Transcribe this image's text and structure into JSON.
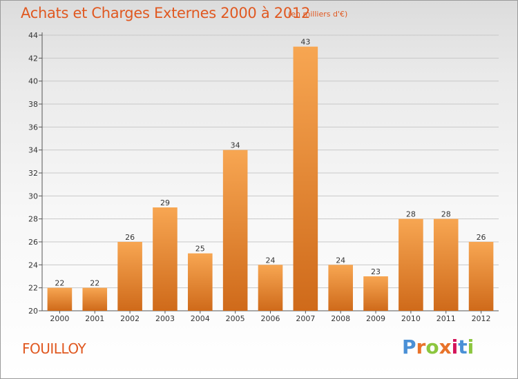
{
  "header": {
    "title": "Achats et Charges Externes 2000 à 2012",
    "subtitle": "(en milliers d'€)"
  },
  "footer": {
    "commune": "FOUILLOY",
    "logo_text": "Proxiti",
    "logo_colors": [
      "#4a90d6",
      "#e8732a",
      "#8cc63f",
      "#e8732a",
      "#d4145a",
      "#4a90d6",
      "#8cc63f"
    ]
  },
  "colors": {
    "accent": "#e05820",
    "bar_top": "#f7a652",
    "bar_bottom": "#cf6a1a",
    "grid": "#c8c8c8"
  },
  "chart_data": {
    "type": "bar",
    "title": "Achats et Charges Externes 2000 à 2012",
    "subtitle": "(en milliers d'€)",
    "xlabel": "",
    "ylabel": "",
    "categories": [
      "2000",
      "2001",
      "2002",
      "2003",
      "2004",
      "2005",
      "2006",
      "2007",
      "2008",
      "2009",
      "2010",
      "2011",
      "2012"
    ],
    "values": [
      22,
      22,
      26,
      29,
      25,
      34,
      24,
      43,
      24,
      23,
      28,
      28,
      26
    ],
    "ylim": [
      20,
      44
    ],
    "yticks": [
      20,
      22,
      24,
      26,
      28,
      30,
      32,
      34,
      36,
      38,
      40,
      42,
      44
    ],
    "grid": true,
    "data_labels": true
  }
}
